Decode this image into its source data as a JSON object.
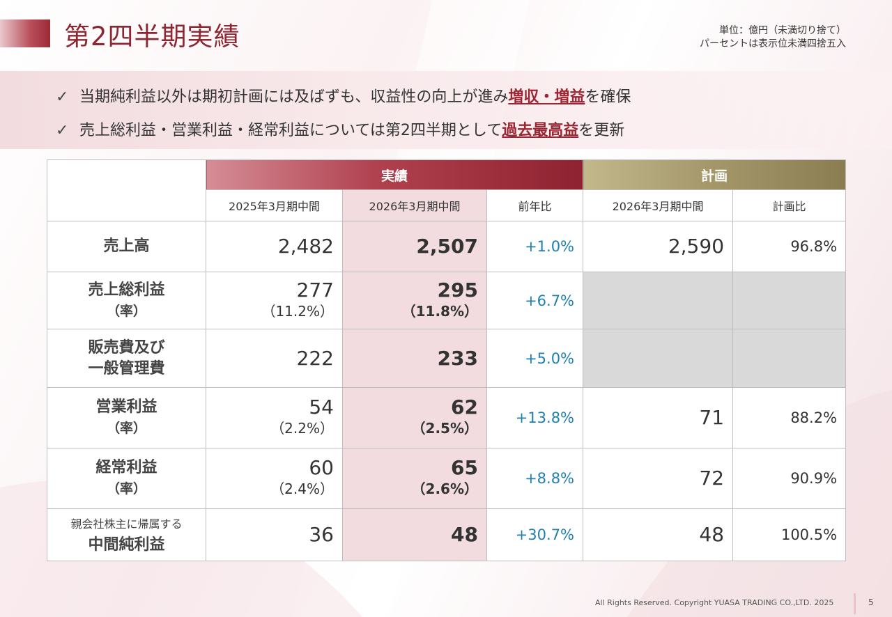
{
  "title": "第2四半期実績",
  "unit_note": {
    "line1": "単位：億円（未満切り捨て）",
    "line2": "パーセントは表示位未満四捨五入"
  },
  "bullets": [
    {
      "check": "✓",
      "pre": "当期純利益以外は期初計画には及ばずも、収益性の向上が進み",
      "highlight": "増収・増益",
      "post": "を確保"
    },
    {
      "check": "✓",
      "pre": "売上総利益・営業利益・経常利益については第2四半期として",
      "highlight": "過去最高益",
      "post": "を更新"
    }
  ],
  "table": {
    "group_actual": "実績",
    "group_plan": "計画",
    "columns": [
      "2025年3月期中間",
      "2026年3月期中間",
      "前年比",
      "2026年3月期中間",
      "計画比"
    ],
    "rows": [
      {
        "label1": "売上高",
        "label2": "",
        "prev": "2,482",
        "prev_rate": "",
        "curr": "2,507",
        "curr_rate": "",
        "yoy": "+1.0%",
        "plan": "2,590",
        "plan_ratio": "96.8%"
      },
      {
        "label1": "売上総利益",
        "label2": "（率）",
        "prev": "277",
        "prev_rate": "（11.2%）",
        "curr": "295",
        "curr_rate": "（11.8%）",
        "yoy": "+6.7%",
        "plan": "",
        "plan_ratio": ""
      },
      {
        "label1": "販売費及び",
        "label2": "一般管理費",
        "prev": "222",
        "prev_rate": "",
        "curr": "233",
        "curr_rate": "",
        "yoy": "+5.0%",
        "plan": "",
        "plan_ratio": ""
      },
      {
        "label1": "営業利益",
        "label2": "（率）",
        "prev": "54",
        "prev_rate": "（2.2%）",
        "curr": "62",
        "curr_rate": "（2.5%）",
        "yoy": "+13.8%",
        "plan": "71",
        "plan_ratio": "88.2%"
      },
      {
        "label1": "経常利益",
        "label2": "（率）",
        "prev": "60",
        "prev_rate": "（2.4%）",
        "curr": "65",
        "curr_rate": "（2.6%）",
        "yoy": "+8.8%",
        "plan": "72",
        "plan_ratio": "90.9%"
      },
      {
        "label1": "親会社株主に帰属する",
        "label2": "中間純利益",
        "prev": "36",
        "prev_rate": "",
        "curr": "48",
        "curr_rate": "",
        "yoy": "+30.7%",
        "plan": "48",
        "plan_ratio": "100.5%"
      }
    ]
  },
  "footer": {
    "copyright": "All Rights Reserved. Copyright  YUASA TRADING CO.,LTD. 2025",
    "page": "5"
  },
  "colors": {
    "title": "#8c2632",
    "highlight": "#9b2533",
    "yoy": "#1f7fb0",
    "actual_header": "#a83a48",
    "plan_header": "#a3976a",
    "current_column": "#f2dcdf",
    "empty_cell": "#d9d9d9"
  }
}
